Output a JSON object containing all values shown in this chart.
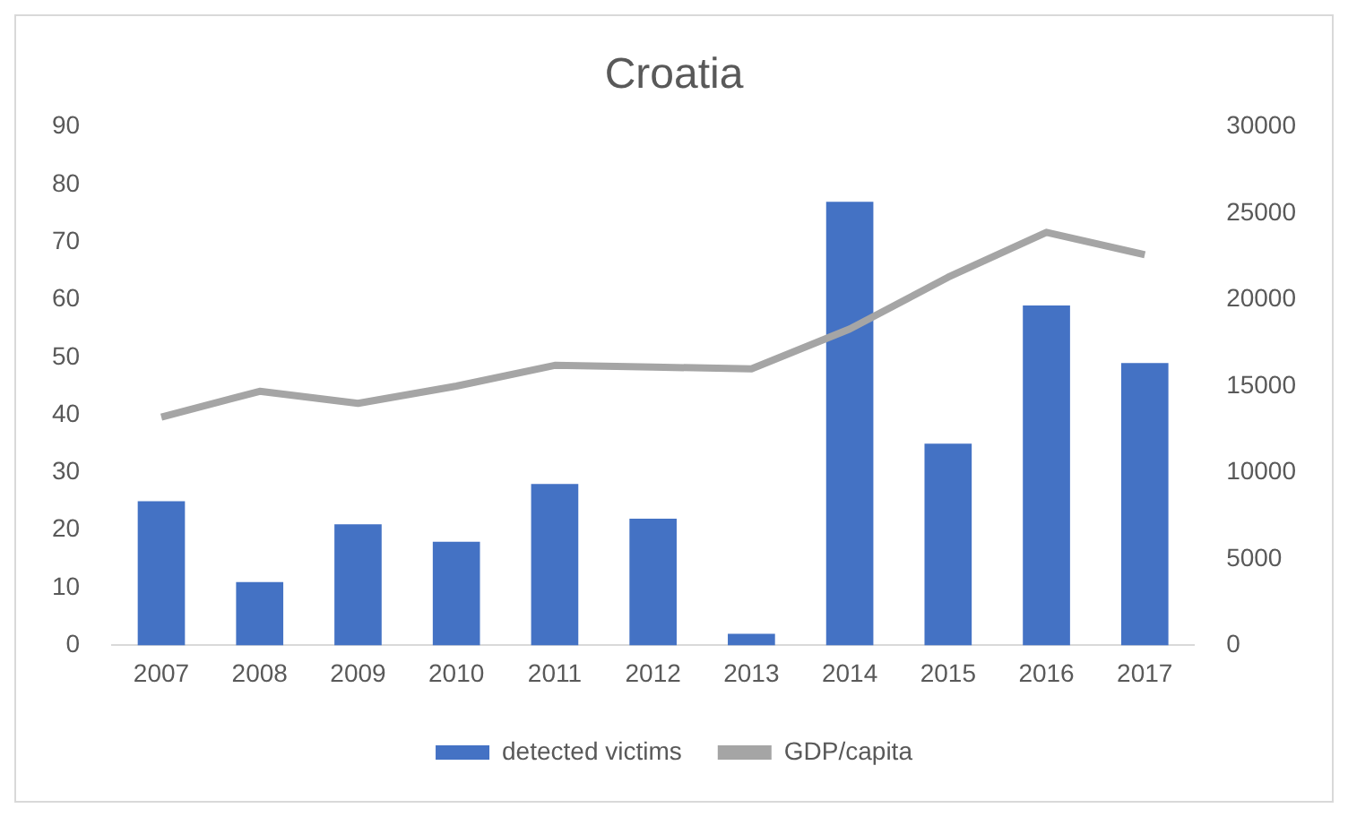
{
  "chart_data": {
    "type": "bar",
    "title": "Croatia",
    "categories": [
      "2007",
      "2008",
      "2009",
      "2010",
      "2011",
      "2012",
      "2013",
      "2014",
      "2015",
      "2016",
      "2017"
    ],
    "series": [
      {
        "name": "detected victims",
        "color": "#4472c4",
        "values": [
          25,
          11,
          21,
          18,
          28,
          22,
          2,
          77,
          35,
          59,
          49
        ]
      },
      {
        "name": "GDP/capita",
        "type": "line",
        "axis": "y2",
        "color": "#a5a5a5",
        "values": [
          13200,
          14700,
          14000,
          15000,
          16200,
          16100,
          16000,
          18300,
          21300,
          23900,
          22600
        ]
      }
    ],
    "ylim": [
      0,
      90
    ],
    "yticks": [
      0,
      10,
      20,
      30,
      40,
      50,
      60,
      70,
      80,
      90
    ],
    "y2lim": [
      0,
      30000
    ],
    "y2ticks": [
      0,
      5000,
      10000,
      15000,
      20000,
      25000,
      30000
    ],
    "grid": false,
    "legend": "bottom",
    "marker": "none"
  }
}
